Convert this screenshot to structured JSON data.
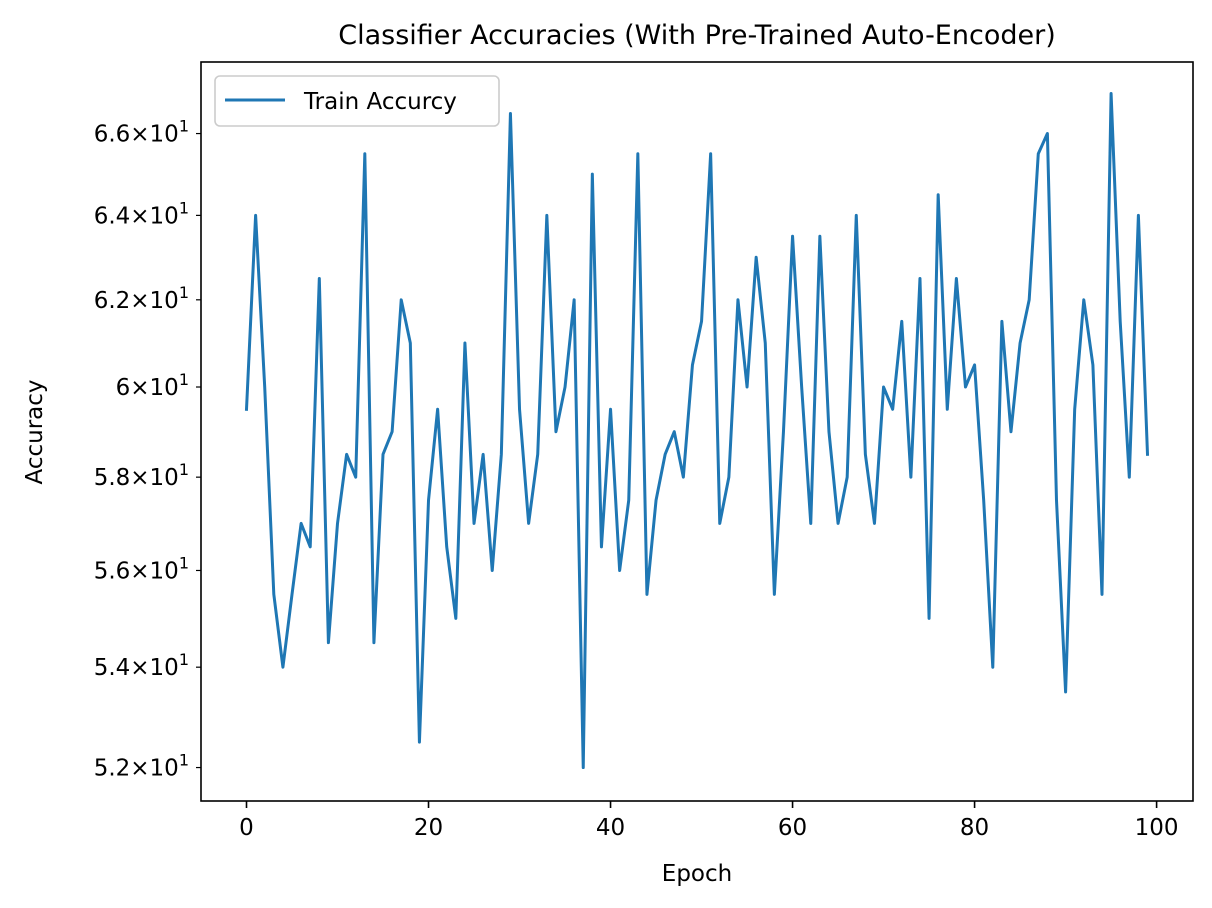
{
  "chart_data": {
    "type": "line",
    "title": "Classifier Accuracies (With Pre-Trained Auto-Encoder)",
    "xlabel": "Epoch",
    "ylabel": "Accuracy",
    "yscale": "log",
    "xlim": [
      -5,
      104
    ],
    "ylim": [
      51.35,
      67.8
    ],
    "grid": false,
    "legend_position": "top-left",
    "x_ticks": [
      0,
      20,
      40,
      60,
      80,
      100
    ],
    "x_tick_labels": [
      "0",
      "20",
      "40",
      "60",
      "80",
      "100"
    ],
    "y_ticks": [
      52,
      54,
      56,
      58,
      60,
      62,
      64,
      66
    ],
    "y_tick_mantissas": [
      "5.2",
      "5.4",
      "5.6",
      "5.8",
      "6",
      "6.2",
      "6.4",
      "6.6"
    ],
    "y_tick_base": "10",
    "y_tick_exponent": "1",
    "series": [
      {
        "name": "Train Accurcy",
        "color": "#1f77b4",
        "x": [
          0,
          1,
          2,
          3,
          4,
          5,
          6,
          7,
          8,
          9,
          10,
          11,
          12,
          13,
          14,
          15,
          16,
          17,
          18,
          19,
          20,
          21,
          22,
          23,
          24,
          25,
          26,
          27,
          28,
          29,
          30,
          31,
          32,
          33,
          34,
          35,
          36,
          37,
          38,
          39,
          40,
          41,
          42,
          43,
          44,
          45,
          46,
          47,
          48,
          49,
          50,
          51,
          52,
          53,
          54,
          55,
          56,
          57,
          58,
          59,
          60,
          61,
          62,
          63,
          64,
          65,
          66,
          67,
          68,
          69,
          70,
          71,
          72,
          73,
          74,
          75,
          76,
          77,
          78,
          79,
          80,
          81,
          82,
          83,
          84,
          85,
          86,
          87,
          88,
          89,
          90,
          91,
          92,
          93,
          94,
          95,
          96,
          97,
          98,
          99
        ],
        "values": [
          59.5,
          64.0,
          60.0,
          55.5,
          54.0,
          55.5,
          57.0,
          56.5,
          62.5,
          54.5,
          57.0,
          58.5,
          58.0,
          65.5,
          54.5,
          58.5,
          59.0,
          62.0,
          61.0,
          52.5,
          57.5,
          59.5,
          56.5,
          55.0,
          61.0,
          57.0,
          58.5,
          56.0,
          58.5,
          66.5,
          59.5,
          57.0,
          58.5,
          64.0,
          59.0,
          60.0,
          62.0,
          52.0,
          65.0,
          56.5,
          59.5,
          56.0,
          57.5,
          65.5,
          55.5,
          57.5,
          58.5,
          59.0,
          58.0,
          60.5,
          61.5,
          65.5,
          57.0,
          58.0,
          62.0,
          60.0,
          63.0,
          61.0,
          55.5,
          59.0,
          63.5,
          60.0,
          57.0,
          63.5,
          59.0,
          57.0,
          58.0,
          64.0,
          58.5,
          57.0,
          60.0,
          59.5,
          61.5,
          58.0,
          62.5,
          55.0,
          64.5,
          59.5,
          62.5,
          60.0,
          60.5,
          57.5,
          54.0,
          61.5,
          59.0,
          61.0,
          62.0,
          65.5,
          66.0,
          57.5,
          53.5,
          59.5,
          62.0,
          60.5,
          55.5,
          67.0,
          61.5,
          58.0,
          64.0,
          58.5
        ]
      }
    ]
  }
}
